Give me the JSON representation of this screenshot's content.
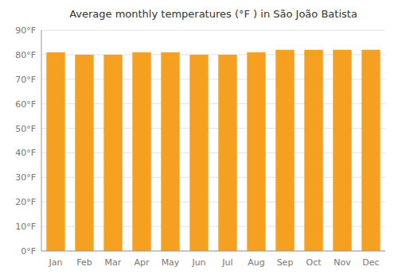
{
  "chart_data": {
    "type": "bar",
    "title": "Average monthly temperatures (°F ) in São João Batista",
    "categories": [
      "Jan",
      "Feb",
      "Mar",
      "Apr",
      "May",
      "Jun",
      "Jul",
      "Aug",
      "Sep",
      "Oct",
      "Nov",
      "Dec"
    ],
    "values": [
      81,
      80,
      80,
      81,
      81,
      80,
      80,
      81,
      82,
      82,
      82,
      82
    ],
    "color": "#F5A020",
    "ylim": [
      0,
      90
    ],
    "yticks": [
      {
        "value": 0,
        "label": "0°F"
      },
      {
        "value": 10,
        "label": "10°F"
      },
      {
        "value": 20,
        "label": "20°F"
      },
      {
        "value": 30,
        "label": "30°F"
      },
      {
        "value": 40,
        "label": "40°F"
      },
      {
        "value": 50,
        "label": "50°F"
      },
      {
        "value": 60,
        "label": "60°F"
      },
      {
        "value": 70,
        "label": "70°F"
      },
      {
        "value": 80,
        "label": "80°F"
      },
      {
        "value": 90,
        "label": "90°F"
      }
    ],
    "grid": true
  }
}
